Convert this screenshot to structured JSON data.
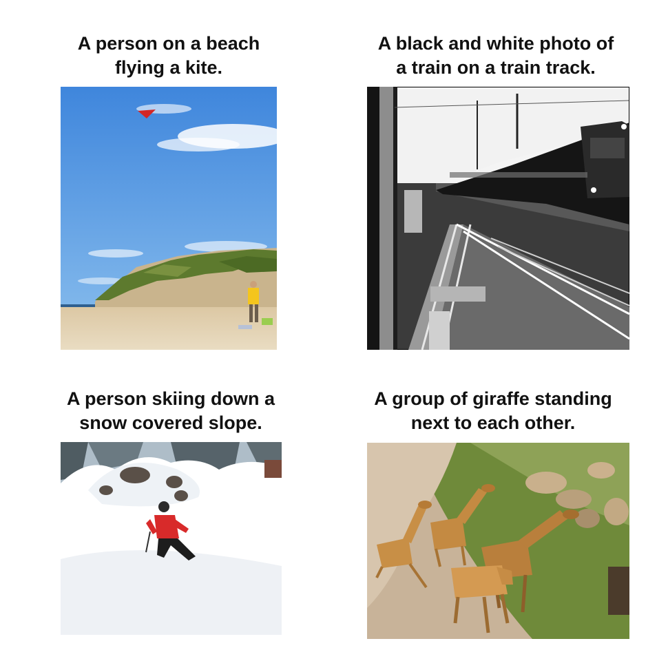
{
  "items": [
    {
      "caption_line1": "A person on a beach",
      "caption_line2": "flying a kite."
    },
    {
      "caption_line1": "A black and white photo of",
      "caption_line2": "a train on a train track."
    },
    {
      "caption_line1": "A person skiing down a",
      "caption_line2": "snow covered slope."
    },
    {
      "caption_line1": "A group of giraffe standing",
      "caption_line2": "next to each other."
    }
  ]
}
